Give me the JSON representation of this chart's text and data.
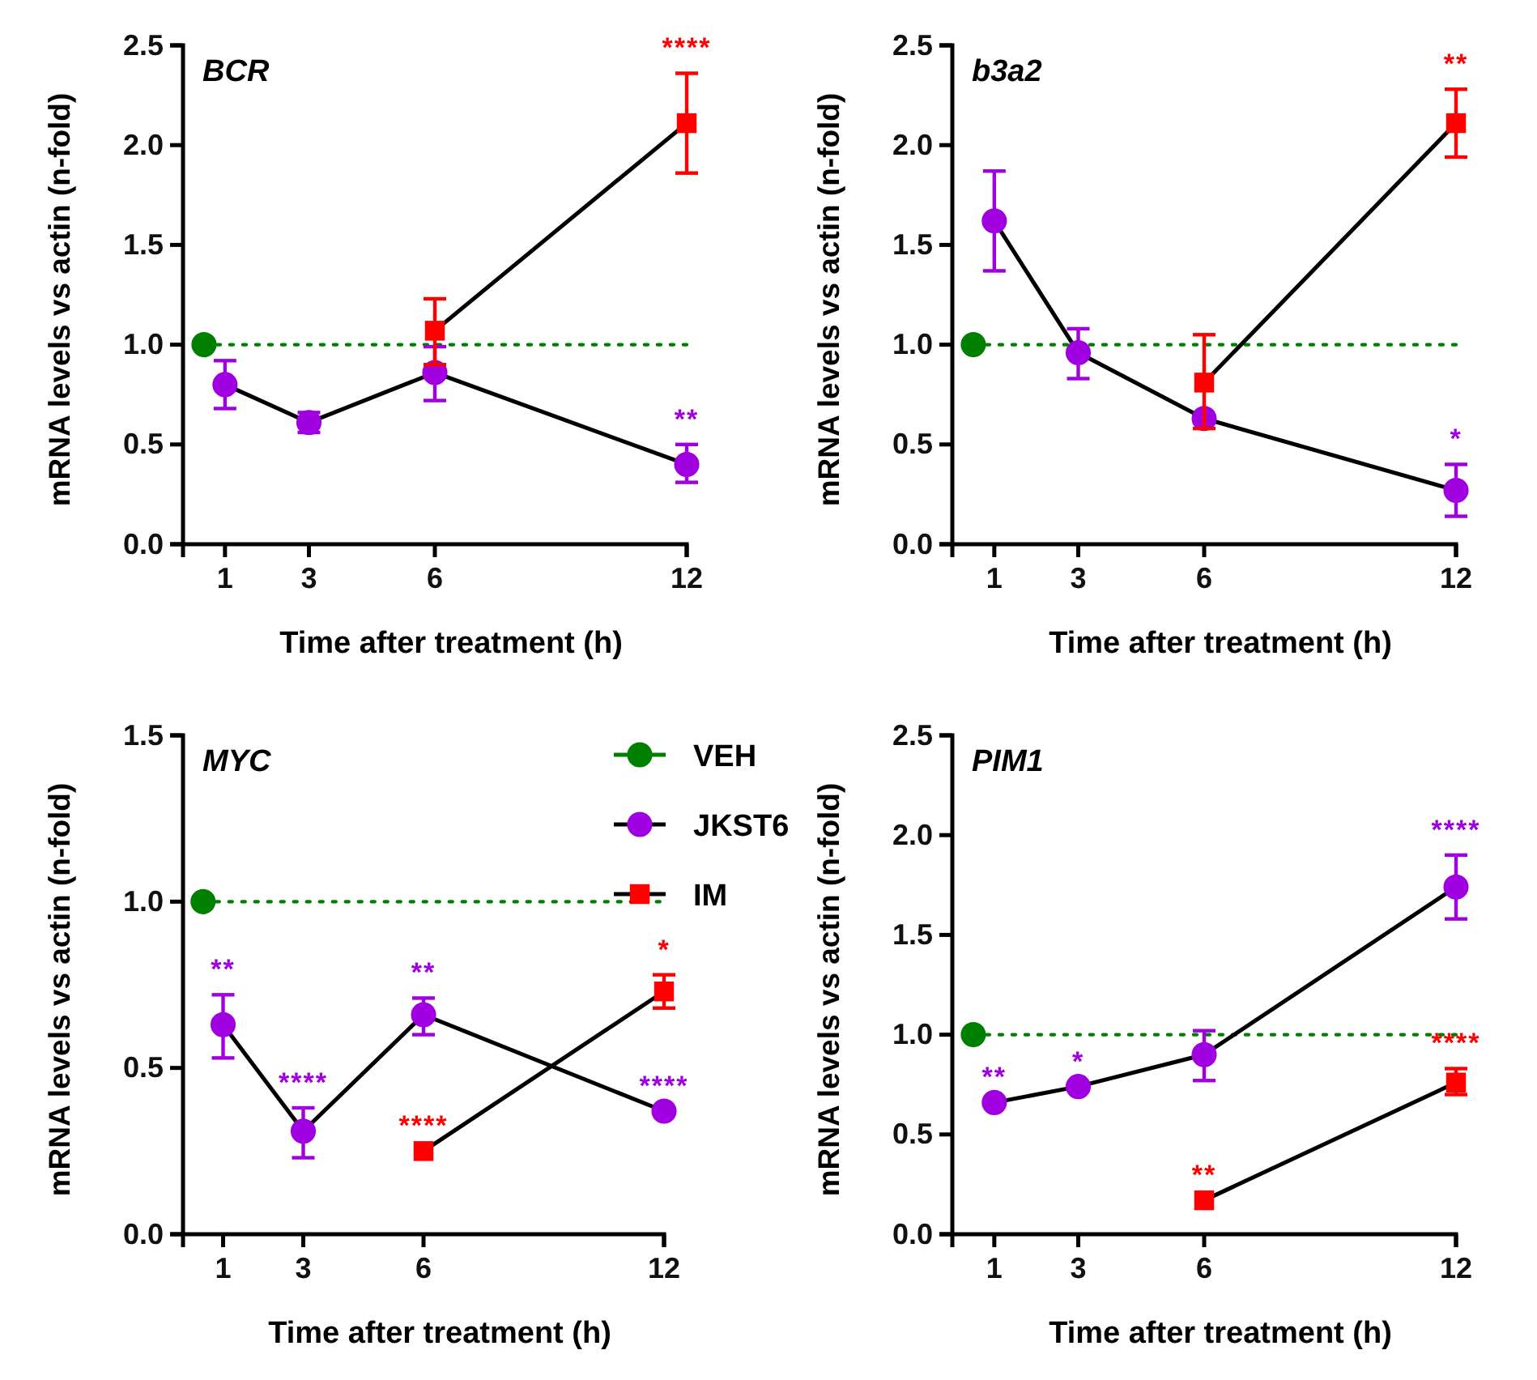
{
  "chart_data": [
    {
      "type": "line",
      "title": "BCR",
      "xlabel": "Time after treatment (h)",
      "ylabel": "mRNA levels vs actin (n-fold)",
      "xlim": [
        0,
        12
      ],
      "xticks": [
        1,
        3,
        6,
        12
      ],
      "ylim": [
        0,
        2.5
      ],
      "yticks": [
        {
          "value": 0,
          "label": "0.0"
        },
        {
          "value": 0.5,
          "label": "0.5"
        },
        {
          "value": 1,
          "label": "1.0"
        },
        {
          "value": 1.5,
          "label": "1.5"
        },
        {
          "value": 2,
          "label": "2.0"
        },
        {
          "value": 2.5,
          "label": "2.5"
        }
      ],
      "legend": false,
      "series": [
        {
          "color": "#008000",
          "marker": "circle",
          "line_style": "dotted",
          "x": [
            0.5,
            12
          ],
          "values": [
            1,
            1
          ]
        },
        {
          "color": "#a000e0",
          "marker": "circle",
          "line_style": "solid",
          "x": [
            1,
            3,
            6,
            12
          ],
          "values": [
            0.8,
            0.61,
            0.86,
            0.4
          ],
          "errors": [
            [
              0.68,
              0.92
            ],
            [
              0.56,
              0.66
            ],
            [
              0.72,
              0.99
            ],
            [
              0.31,
              0.5
            ]
          ]
        },
        {
          "color": "#ff0000",
          "marker": "square",
          "line_style": "solid",
          "x": [
            6,
            12
          ],
          "values": [
            1.07,
            2.11
          ],
          "errors": [
            [
              0.9,
              1.23
            ],
            [
              1.86,
              2.36
            ]
          ]
        }
      ],
      "annotations": [
        {
          "text": "****",
          "x": 12,
          "y": 2.11
        },
        {
          "text": "**",
          "x": 12,
          "y": 0.4
        }
      ]
    },
    {
      "type": "line",
      "title": "b3a2",
      "xlabel": "Time after treatment (h)",
      "ylabel": "mRNA levels vs actin (n-fold)",
      "xlim": [
        0,
        12
      ],
      "xticks": [
        1,
        3,
        6,
        12
      ],
      "ylim": [
        0,
        2.5
      ],
      "yticks": [
        {
          "value": 0,
          "label": "0.0"
        },
        {
          "value": 0.5,
          "label": "0.5"
        },
        {
          "value": 1,
          "label": "1.0"
        },
        {
          "value": 1.5,
          "label": "1.5"
        },
        {
          "value": 2,
          "label": "2.0"
        },
        {
          "value": 2.5,
          "label": "2.5"
        }
      ],
      "legend": false,
      "series": [
        {
          "color": "#008000",
          "marker": "circle",
          "line_style": "dotted",
          "x": [
            0.5,
            12
          ],
          "values": [
            1,
            1
          ]
        },
        {
          "color": "#a000e0",
          "marker": "circle",
          "line_style": "solid",
          "x": [
            1,
            3,
            6,
            12
          ],
          "values": [
            1.62,
            0.96,
            0.63,
            0.27
          ],
          "errors": [
            [
              1.37,
              1.87
            ],
            [
              0.83,
              1.08
            ],
            null,
            [
              0.14,
              0.4
            ]
          ]
        },
        {
          "color": "#ff0000",
          "marker": "square",
          "line_style": "solid",
          "x": [
            6,
            12
          ],
          "values": [
            0.81,
            2.11
          ],
          "errors": [
            [
              0.58,
              1.05
            ],
            [
              1.94,
              2.28
            ]
          ]
        }
      ],
      "annotations": [
        {
          "text": "**",
          "x": 12,
          "y": 2.11
        },
        {
          "text": "*",
          "x": 12,
          "y": 0.27
        }
      ]
    },
    {
      "type": "line",
      "title": "MYC",
      "xlabel": "Time after treatment (h)",
      "ylabel": "mRNA levels vs actin (n-fold)",
      "xlim": [
        0,
        12
      ],
      "xticks": [
        1,
        3,
        6,
        12
      ],
      "ylim": [
        0,
        1.5
      ],
      "yticks": [
        {
          "value": 0,
          "label": "0.0"
        },
        {
          "value": 0.5,
          "label": "0.5"
        },
        {
          "value": 1,
          "label": "1.0"
        },
        {
          "value": 1.5,
          "label": "1.5"
        }
      ],
      "legend": "right",
      "series": [
        {
          "name": "VEH",
          "color": "#008000",
          "marker": "circle",
          "line_style": "dotted",
          "x": [
            0.5,
            12
          ],
          "values": [
            1,
            1
          ]
        },
        {
          "name": "JKST6",
          "color": "#a000e0",
          "marker": "circle",
          "line_style": "solid",
          "x": [
            1,
            3,
            6,
            12
          ],
          "values": [
            0.63,
            0.31,
            0.66,
            0.37
          ],
          "errors": [
            [
              0.53,
              0.72
            ],
            [
              0.23,
              0.38
            ],
            [
              0.6,
              0.71
            ],
            null
          ]
        },
        {
          "name": "IM",
          "color": "#ff0000",
          "marker": "square",
          "line_style": "solid",
          "x": [
            6,
            12
          ],
          "values": [
            0.25,
            0.73
          ],
          "errors": [
            null,
            [
              0.68,
              0.78
            ]
          ]
        }
      ],
      "annotations": [
        {
          "text": "**",
          "x": 1,
          "y": 0.63
        },
        {
          "text": "****",
          "x": 3,
          "y": 0.31
        },
        {
          "text": "**",
          "x": 6,
          "y": 0.66
        },
        {
          "text": "****",
          "x": 12,
          "y": 0.37
        },
        {
          "text": "****",
          "x": 6,
          "y": 0.25
        },
        {
          "text": "*",
          "x": 12,
          "y": 0.73
        }
      ]
    },
    {
      "type": "line",
      "title": "PIM1",
      "xlabel": "Time after treatment (h)",
      "ylabel": "mRNA levels vs actin (n-fold)",
      "xlim": [
        0,
        12
      ],
      "xticks": [
        1,
        3,
        6,
        12
      ],
      "ylim": [
        0,
        2.5
      ],
      "yticks": [
        {
          "value": 0,
          "label": "0.0"
        },
        {
          "value": 0.5,
          "label": "0.5"
        },
        {
          "value": 1,
          "label": "1.0"
        },
        {
          "value": 1.5,
          "label": "1.5"
        },
        {
          "value": 2,
          "label": "2.0"
        },
        {
          "value": 2.5,
          "label": "2.5"
        }
      ],
      "legend": false,
      "series": [
        {
          "color": "#008000",
          "marker": "circle",
          "line_style": "dotted",
          "x": [
            0.5,
            12
          ],
          "values": [
            1,
            1
          ]
        },
        {
          "color": "#a000e0",
          "marker": "circle",
          "line_style": "solid",
          "x": [
            1,
            3,
            6,
            12
          ],
          "values": [
            0.66,
            0.74,
            0.9,
            1.74
          ],
          "errors": [
            null,
            null,
            [
              0.77,
              1.02
            ],
            [
              1.58,
              1.9
            ]
          ]
        },
        {
          "color": "#ff0000",
          "marker": "square",
          "line_style": "solid",
          "x": [
            6,
            12
          ],
          "values": [
            0.17,
            0.76
          ],
          "errors": [
            null,
            [
              0.7,
              0.83
            ]
          ]
        }
      ],
      "annotations": [
        {
          "text": "**",
          "x": 1,
          "y": 0.66
        },
        {
          "text": "*",
          "x": 3,
          "y": 0.74
        },
        {
          "text": "****",
          "x": 12,
          "y": 1.74
        },
        {
          "text": "**",
          "x": 6,
          "y": 0.17
        },
        {
          "text": "****",
          "x": 12,
          "y": 0.76
        }
      ]
    }
  ]
}
